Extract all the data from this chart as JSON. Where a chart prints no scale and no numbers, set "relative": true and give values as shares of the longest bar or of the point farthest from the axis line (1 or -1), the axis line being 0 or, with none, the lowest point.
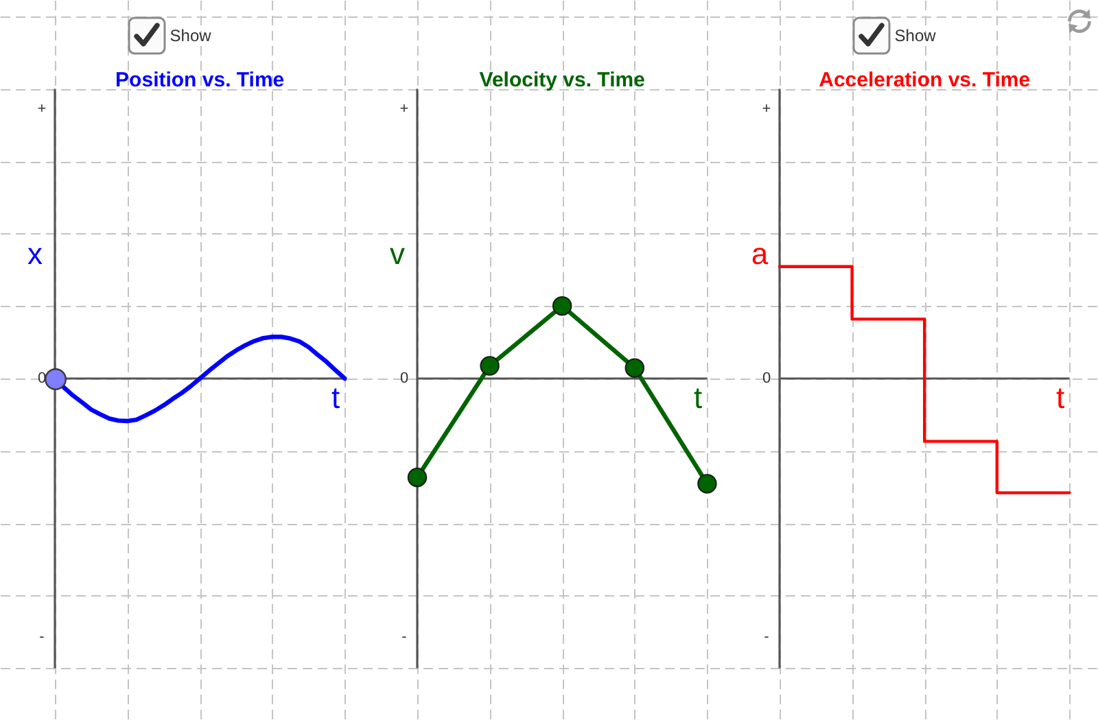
{
  "chart_data": [
    {
      "type": "line",
      "title": "Position vs. Time",
      "xlabel": "t",
      "ylabel": "x",
      "relative": true,
      "grid": true,
      "categories": [
        null,
        null,
        null,
        null,
        null,
        null,
        null,
        null,
        null,
        null,
        null,
        null,
        null,
        null,
        null,
        null,
        null,
        null,
        null,
        null,
        null,
        null,
        null,
        null,
        null,
        null,
        null,
        null,
        null,
        null,
        null,
        null,
        null
      ],
      "series": [
        {
          "color": "#0000ff",
          "values": [
            0,
            -0.21,
            -0.4,
            -0.56,
            -0.73,
            -0.84,
            -0.94,
            -0.99,
            -1,
            -0.97,
            -0.87,
            -0.76,
            -0.63,
            -0.48,
            -0.34,
            -0.18,
            0,
            0.18,
            0.35,
            0.52,
            0.66,
            0.78,
            0.88,
            0.95,
            0.98,
            0.98,
            0.94,
            0.87,
            0.74,
            0.56,
            0.39,
            0.19,
            0
          ]
        }
      ],
      "annotations": [
        "+",
        "0",
        "-",
        "Show"
      ]
    },
    {
      "type": "line",
      "title": "Velocity vs. Time",
      "xlabel": "t",
      "ylabel": "v",
      "relative": true,
      "grid": true,
      "marker": "circle",
      "categories": [
        null,
        null,
        null,
        null,
        null
      ],
      "series": [
        {
          "color": "#006400",
          "values": [
            -0.94,
            0.12,
            0.69,
            0.1,
            -1
          ]
        }
      ],
      "annotations": [
        "+",
        "0",
        "-"
      ]
    },
    {
      "type": "step",
      "title": "Acceleration vs. Time",
      "xlabel": "t",
      "ylabel": "a",
      "relative": true,
      "grid": true,
      "categories": [
        null,
        null,
        null,
        null,
        null
      ],
      "series": [
        {
          "color": "#ff0000",
          "values": [
            0.98,
            0.52,
            -0.55,
            -1,
            -1
          ]
        }
      ],
      "annotations": [
        "+",
        "0",
        "-",
        "Show"
      ]
    }
  ]
}
